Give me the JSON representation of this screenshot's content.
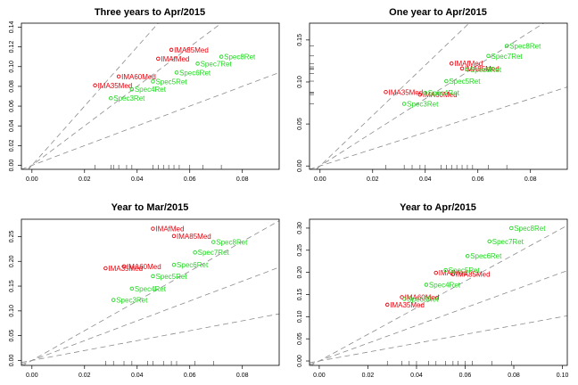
{
  "chart_data": [
    {
      "type": "scatter",
      "title": "Three years to Apr/2015",
      "xlim": [
        -0.004,
        0.094
      ],
      "ylim": [
        -0.004,
        0.144
      ],
      "xticks": [
        "0.00",
        "0.02",
        "0.04",
        "0.06",
        "0.08"
      ],
      "xtick_values": [
        0,
        0.02,
        0.04,
        0.06,
        0.08
      ],
      "yticks": [
        "0.00",
        "0.02",
        "0.04",
        "0.06",
        "0.08",
        "0.10",
        "0.12",
        "0.14"
      ],
      "ytick_values": [
        0,
        0.02,
        0.04,
        0.06,
        0.08,
        0.1,
        0.12,
        0.14
      ],
      "reference_slopes": [
        3,
        2,
        1
      ],
      "rug_x": [
        0.024,
        0.03,
        0.031,
        0.033,
        0.036,
        0.038,
        0.046,
        0.048,
        0.05,
        0.052,
        0.054,
        0.056,
        0.06,
        0.065,
        0.072
      ],
      "points": [
        {
          "label": "IMA35Med",
          "x": 0.024,
          "y": 0.081,
          "color": "#e8000b"
        },
        {
          "label": "IMA60Med",
          "x": 0.033,
          "y": 0.09,
          "color": "#e8000b"
        },
        {
          "label": "IMAfMed",
          "x": 0.048,
          "y": 0.108,
          "color": "#e8000b"
        },
        {
          "label": "IMA85Med",
          "x": 0.053,
          "y": 0.117,
          "color": "#e8000b"
        },
        {
          "label": "Spec3Ret",
          "x": 0.03,
          "y": 0.068,
          "color": "#1ed91e"
        },
        {
          "label": "Spec4Ret",
          "x": 0.038,
          "y": 0.077,
          "color": "#1ed91e"
        },
        {
          "label": "Spec5Ret",
          "x": 0.046,
          "y": 0.085,
          "color": "#1ed91e"
        },
        {
          "label": "Spec6Ret",
          "x": 0.055,
          "y": 0.094,
          "color": "#1ed91e"
        },
        {
          "label": "Spec7Ret",
          "x": 0.063,
          "y": 0.103,
          "color": "#1ed91e"
        },
        {
          "label": "Spec8Ret",
          "x": 0.072,
          "y": 0.11,
          "color": "#1ed91e"
        }
      ]
    },
    {
      "type": "scatter",
      "title": "One year to Apr/2015",
      "xlim": [
        -0.004,
        0.094
      ],
      "ylim": [
        -0.004,
        0.17
      ],
      "xticks": [
        "0.00",
        "0.02",
        "0.04",
        "0.06",
        "0.08"
      ],
      "xtick_values": [
        0,
        0.02,
        0.04,
        0.06,
        0.08
      ],
      "yticks": [
        "0.00",
        "0.05",
        "0.10",
        "0.15"
      ],
      "ytick_values": [
        0,
        0.05,
        0.1,
        0.15
      ],
      "reference_slopes": [
        3,
        2,
        1
      ],
      "rug_x": [
        0.025,
        0.032,
        0.035,
        0.038,
        0.04,
        0.046,
        0.048,
        0.05,
        0.052,
        0.054,
        0.056,
        0.058,
        0.064,
        0.071
      ],
      "rug_y": [
        0.074,
        0.085,
        0.087,
        0.088,
        0.101,
        0.11,
        0.115,
        0.116,
        0.118,
        0.122,
        0.131,
        0.143
      ],
      "points": [
        {
          "label": "IMA35Med",
          "x": 0.025,
          "y": 0.088,
          "color": "#e8000b"
        },
        {
          "label": "IMA60Med",
          "x": 0.038,
          "y": 0.085,
          "color": "#e8000b"
        },
        {
          "label": "IMAfMed",
          "x": 0.05,
          "y": 0.122,
          "color": "#e8000b"
        },
        {
          "label": "IMA85Med",
          "x": 0.054,
          "y": 0.116,
          "color": "#e8000b"
        },
        {
          "label": "Spec3Ret",
          "x": 0.032,
          "y": 0.074,
          "color": "#1ed91e"
        },
        {
          "label": "Spec4Ret",
          "x": 0.04,
          "y": 0.087,
          "color": "#1ed91e"
        },
        {
          "label": "Spec5Ret",
          "x": 0.048,
          "y": 0.101,
          "color": "#1ed91e"
        },
        {
          "label": "Spec6Ret",
          "x": 0.056,
          "y": 0.115,
          "color": "#1ed91e"
        },
        {
          "label": "Spec7Ret",
          "x": 0.064,
          "y": 0.131,
          "color": "#1ed91e"
        },
        {
          "label": "Spec8Ret",
          "x": 0.071,
          "y": 0.143,
          "color": "#1ed91e"
        }
      ]
    },
    {
      "type": "scatter",
      "title": "Year to Mar/2015",
      "xlim": [
        -0.004,
        0.094
      ],
      "ylim": [
        -0.01,
        0.285
      ],
      "xticks": [
        "0.00",
        "0.02",
        "0.04",
        "0.06",
        "0.08"
      ],
      "xtick_values": [
        0,
        0.02,
        0.04,
        0.06,
        0.08
      ],
      "yticks": [
        "0.00",
        "0.05",
        "0.10",
        "0.15",
        "0.20",
        "0.25"
      ],
      "ytick_values": [
        0,
        0.05,
        0.1,
        0.15,
        0.2,
        0.25
      ],
      "reference_slopes": [
        3,
        2,
        1
      ],
      "rug_x": [
        0.028,
        0.031,
        0.035,
        0.038,
        0.044,
        0.046,
        0.05,
        0.053,
        0.055,
        0.062,
        0.069
      ],
      "points": [
        {
          "label": "IMA35Med",
          "x": 0.028,
          "y": 0.186,
          "color": "#e8000b"
        },
        {
          "label": "IMA60Med",
          "x": 0.035,
          "y": 0.19,
          "color": "#e8000b"
        },
        {
          "label": "IMAfMed",
          "x": 0.046,
          "y": 0.266,
          "color": "#e8000b"
        },
        {
          "label": "IMA85Med",
          "x": 0.054,
          "y": 0.251,
          "color": "#e8000b"
        },
        {
          "label": "Spec3Ret",
          "x": 0.031,
          "y": 0.122,
          "color": "#1ed91e"
        },
        {
          "label": "Spec4Ret",
          "x": 0.038,
          "y": 0.145,
          "color": "#1ed91e"
        },
        {
          "label": "Spec5Ret",
          "x": 0.046,
          "y": 0.17,
          "color": "#1ed91e"
        },
        {
          "label": "Spec6Ret",
          "x": 0.054,
          "y": 0.193,
          "color": "#1ed91e"
        },
        {
          "label": "Spec7Ret",
          "x": 0.062,
          "y": 0.218,
          "color": "#1ed91e"
        },
        {
          "label": "Spec8Ret",
          "x": 0.069,
          "y": 0.239,
          "color": "#1ed91e"
        }
      ]
    },
    {
      "type": "scatter",
      "title": "Year to Apr/2015",
      "xlim": [
        -0.004,
        0.102
      ],
      "ylim": [
        -0.01,
        0.32
      ],
      "xticks": [
        "0.00",
        "0.02",
        "0.04",
        "0.06",
        "0.08",
        "0.10"
      ],
      "xtick_values": [
        0,
        0.02,
        0.04,
        0.06,
        0.08,
        0.1
      ],
      "yticks": [
        "0.00",
        "0.05",
        "0.10",
        "0.15",
        "0.20",
        "0.25",
        "0.30"
      ],
      "ytick_values": [
        0,
        0.05,
        0.1,
        0.15,
        0.2,
        0.25,
        0.3
      ],
      "reference_slopes": [
        3,
        2,
        1
      ],
      "rug_x": [
        0.028,
        0.034,
        0.037,
        0.04,
        0.045,
        0.048,
        0.052,
        0.055,
        0.057,
        0.06,
        0.063,
        0.071,
        0.079
      ],
      "points": [
        {
          "label": "IMA35Med",
          "x": 0.028,
          "y": 0.127,
          "color": "#e8000b"
        },
        {
          "label": "IMA60Med",
          "x": 0.034,
          "y": 0.144,
          "color": "#e8000b"
        },
        {
          "label": "IMAfMed",
          "x": 0.048,
          "y": 0.199,
          "color": "#e8000b"
        },
        {
          "label": "IMA85Med",
          "x": 0.055,
          "y": 0.196,
          "color": "#e8000b"
        },
        {
          "label": "Spec3Ret",
          "x": 0.035,
          "y": 0.14,
          "color": "#1ed91e"
        },
        {
          "label": "Spec4Ret",
          "x": 0.044,
          "y": 0.172,
          "color": "#1ed91e"
        },
        {
          "label": "Spec5Ret",
          "x": 0.052,
          "y": 0.205,
          "color": "#1ed91e"
        },
        {
          "label": "Spec6Ret",
          "x": 0.061,
          "y": 0.237,
          "color": "#1ed91e"
        },
        {
          "label": "Spec7Ret",
          "x": 0.07,
          "y": 0.27,
          "color": "#1ed91e"
        },
        {
          "label": "Spec8Ret",
          "x": 0.079,
          "y": 0.3,
          "color": "#1ed91e"
        }
      ]
    }
  ]
}
